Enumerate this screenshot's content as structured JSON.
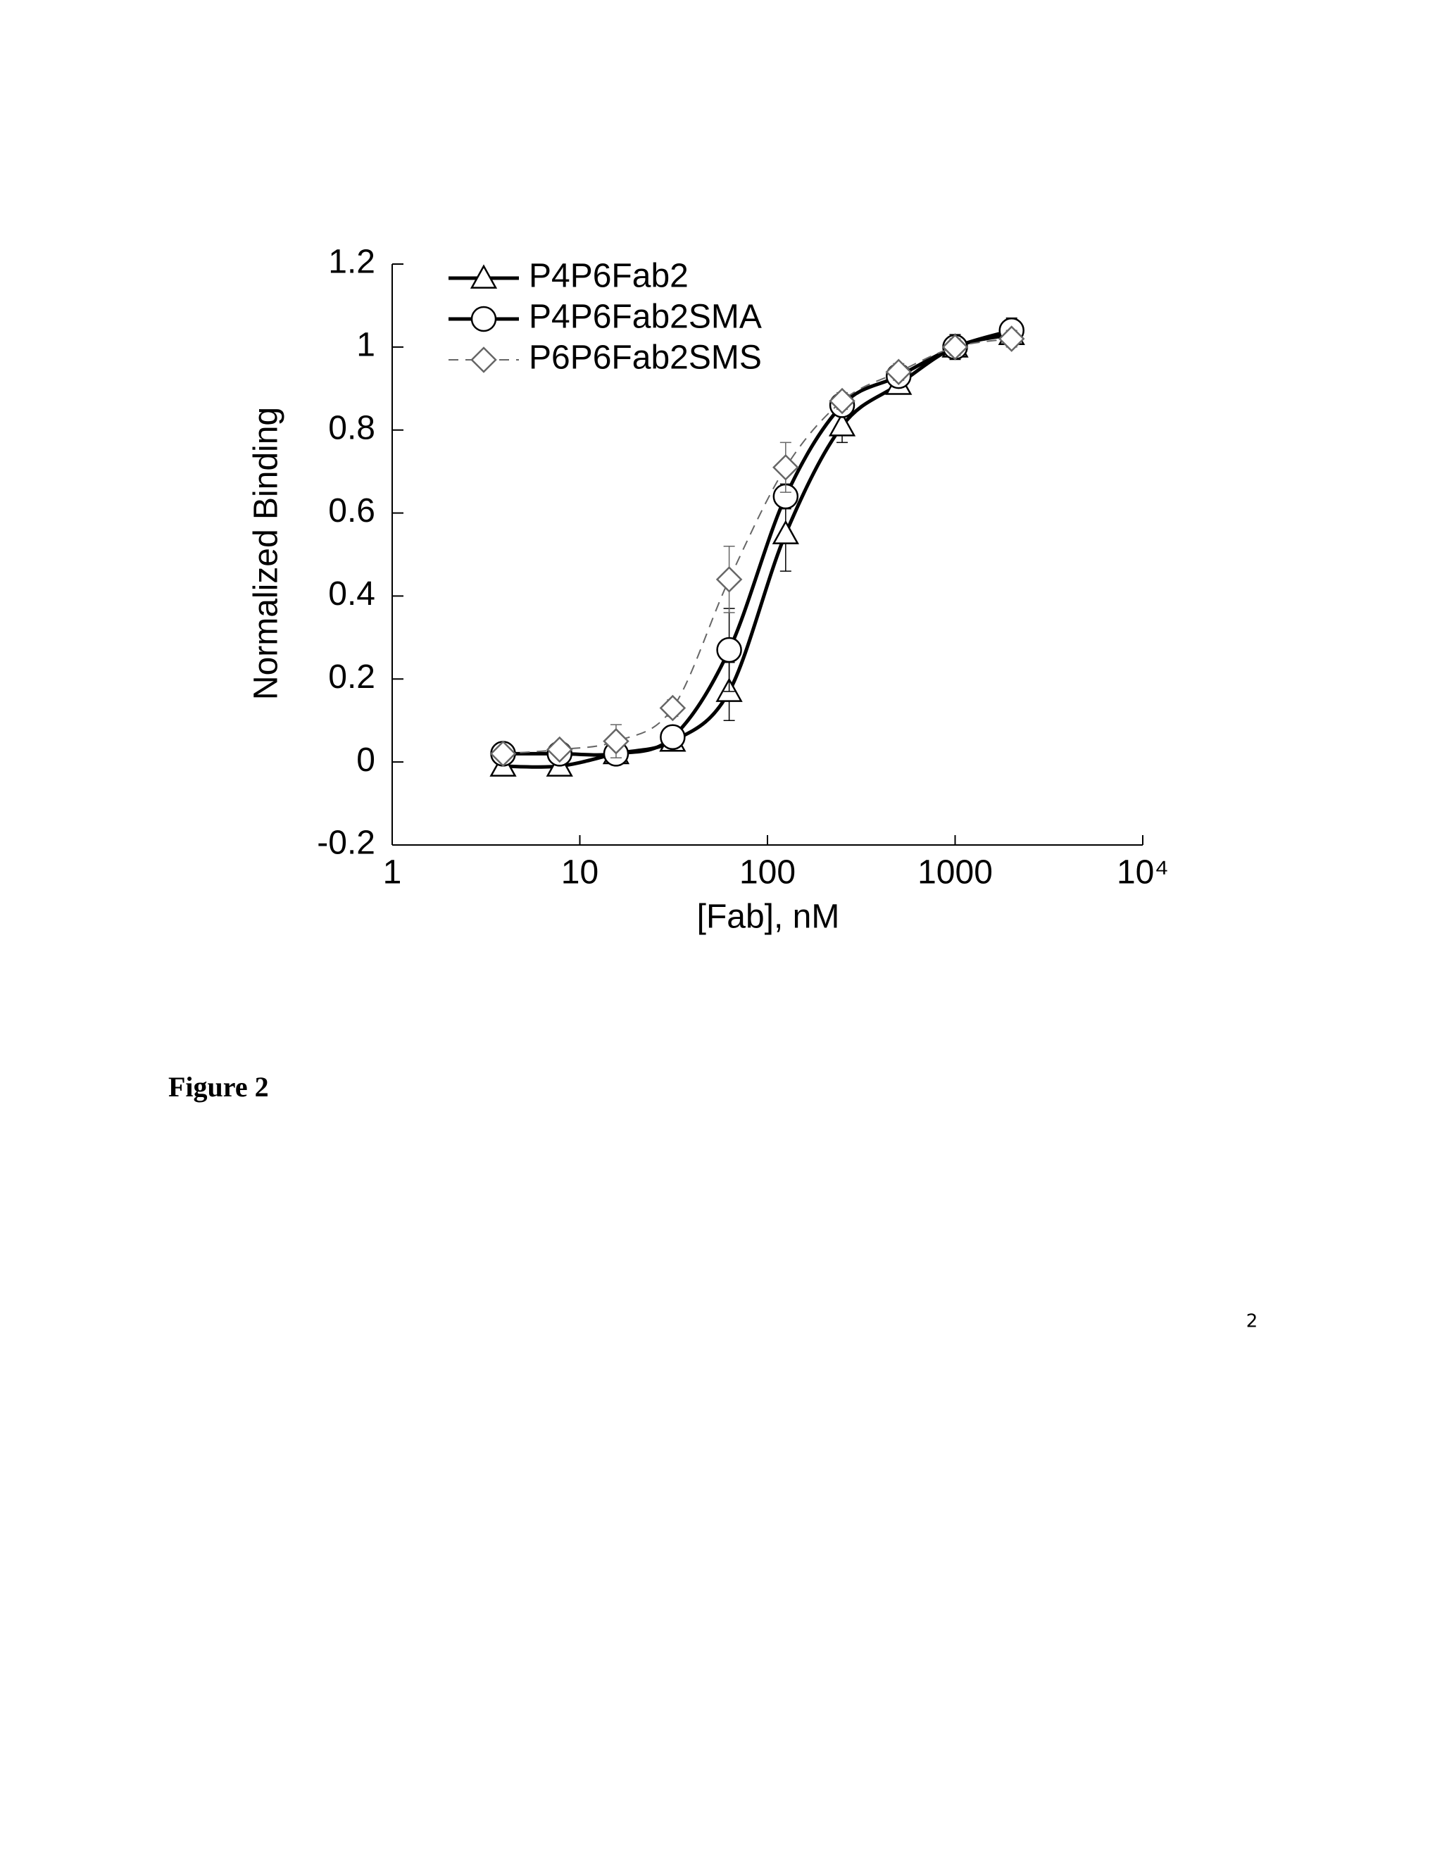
{
  "chart_data": {
    "type": "line",
    "x_label": "[Fab], nM",
    "y_label": "Normalized Binding",
    "xscale": "log",
    "xlim": [
      1,
      10000
    ],
    "xticks": [
      1,
      10,
      100,
      1000,
      {
        "value": 10000,
        "label": "10⁴"
      }
    ],
    "ylim": [
      -0.2,
      1.2
    ],
    "yticks": [
      -0.2,
      0,
      0.2,
      0.4,
      0.6,
      0.8,
      1,
      1.2
    ],
    "legend": "upper left",
    "grid": false,
    "x": [
      3.9,
      7.8,
      15.6,
      31.25,
      62.5,
      125,
      250,
      500,
      1000,
      2000
    ],
    "series": [
      {
        "name": "P4P6Fab2",
        "color": "#000000",
        "marker": "triangle",
        "dashed": false,
        "values": [
          -0.01,
          -0.01,
          0.02,
          0.05,
          0.17,
          0.55,
          0.81,
          0.91,
          1.0,
          1.03
        ],
        "errors": [
          0.01,
          0.01,
          0.01,
          0.02,
          0.07,
          0.09,
          0.04,
          0.02,
          0.03,
          0.02
        ]
      },
      {
        "name": "P4P6Fab2SMA",
        "color": "#000000",
        "marker": "circle",
        "dashed": false,
        "values": [
          0.02,
          0.02,
          0.02,
          0.06,
          0.27,
          0.64,
          0.86,
          0.93,
          1.0,
          1.04
        ],
        "errors": [
          0.01,
          0.01,
          0.01,
          0.02,
          0.1,
          0.03,
          0.02,
          0.02,
          0.02,
          0.03
        ]
      },
      {
        "name": "P6P6Fab2SMS",
        "color": "#666666",
        "marker": "diamond",
        "dashed": true,
        "values": [
          0.02,
          0.03,
          0.05,
          0.13,
          0.44,
          0.71,
          0.87,
          0.94,
          1.0,
          1.02
        ],
        "errors": [
          0.01,
          0.01,
          0.04,
          0.02,
          0.08,
          0.06,
          0.02,
          0.02,
          0.02,
          0.02
        ]
      }
    ]
  },
  "caption": "Figure 2",
  "page_number": "2"
}
